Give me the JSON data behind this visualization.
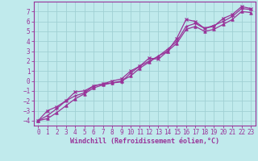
{
  "xlabel": "Windchill (Refroidissement éolien,°C)",
  "background_color": "#c0eaec",
  "grid_color": "#a0d0d4",
  "line_color": "#993399",
  "spine_color": "#993399",
  "xlim": [
    -0.5,
    23.5
  ],
  "ylim": [
    -4.5,
    8.0
  ],
  "x_ticks": [
    0,
    1,
    2,
    3,
    4,
    5,
    6,
    7,
    8,
    9,
    10,
    11,
    12,
    13,
    14,
    15,
    16,
    17,
    18,
    19,
    20,
    21,
    22,
    23
  ],
  "y_ticks": [
    -4,
    -3,
    -2,
    -1,
    0,
    1,
    2,
    3,
    4,
    5,
    6,
    7
  ],
  "line1_x": [
    0,
    1,
    2,
    3,
    4,
    5,
    6,
    7,
    8,
    9,
    10,
    11,
    12,
    13,
    14,
    15,
    16,
    17,
    18,
    19,
    20,
    21,
    22,
    23
  ],
  "line1_y": [
    -4.0,
    -3.0,
    -2.6,
    -2.0,
    -1.1,
    -1.0,
    -0.5,
    -0.3,
    0.0,
    0.2,
    1.0,
    1.5,
    2.3,
    2.2,
    3.0,
    4.3,
    6.2,
    6.0,
    5.3,
    5.5,
    6.3,
    6.7,
    7.5,
    7.3
  ],
  "line2_x": [
    0,
    1,
    2,
    3,
    4,
    5,
    6,
    7,
    8,
    9,
    10,
    11,
    12,
    13,
    14,
    15,
    16,
    17,
    18,
    19,
    20,
    21,
    22,
    23
  ],
  "line2_y": [
    -4.0,
    -3.8,
    -3.2,
    -2.5,
    -1.8,
    -1.3,
    -0.7,
    -0.4,
    -0.2,
    0.0,
    0.5,
    1.3,
    1.9,
    2.5,
    3.0,
    3.8,
    5.2,
    5.5,
    5.0,
    5.2,
    5.7,
    6.2,
    7.0,
    6.9
  ],
  "line3_x": [
    0,
    1,
    2,
    3,
    4,
    5,
    6,
    7,
    8,
    9,
    10,
    11,
    12,
    13,
    14,
    15,
    16,
    17,
    18,
    19,
    20,
    21,
    22,
    23
  ],
  "line3_y": [
    -4.0,
    -3.5,
    -2.8,
    -2.0,
    -1.5,
    -1.2,
    -0.5,
    -0.3,
    -0.2,
    -0.1,
    0.8,
    1.5,
    2.0,
    2.5,
    3.2,
    4.0,
    5.5,
    5.8,
    5.3,
    5.6,
    6.0,
    6.5,
    7.3,
    7.2
  ],
  "tick_fontsize": 5.5,
  "xlabel_fontsize": 6.0
}
